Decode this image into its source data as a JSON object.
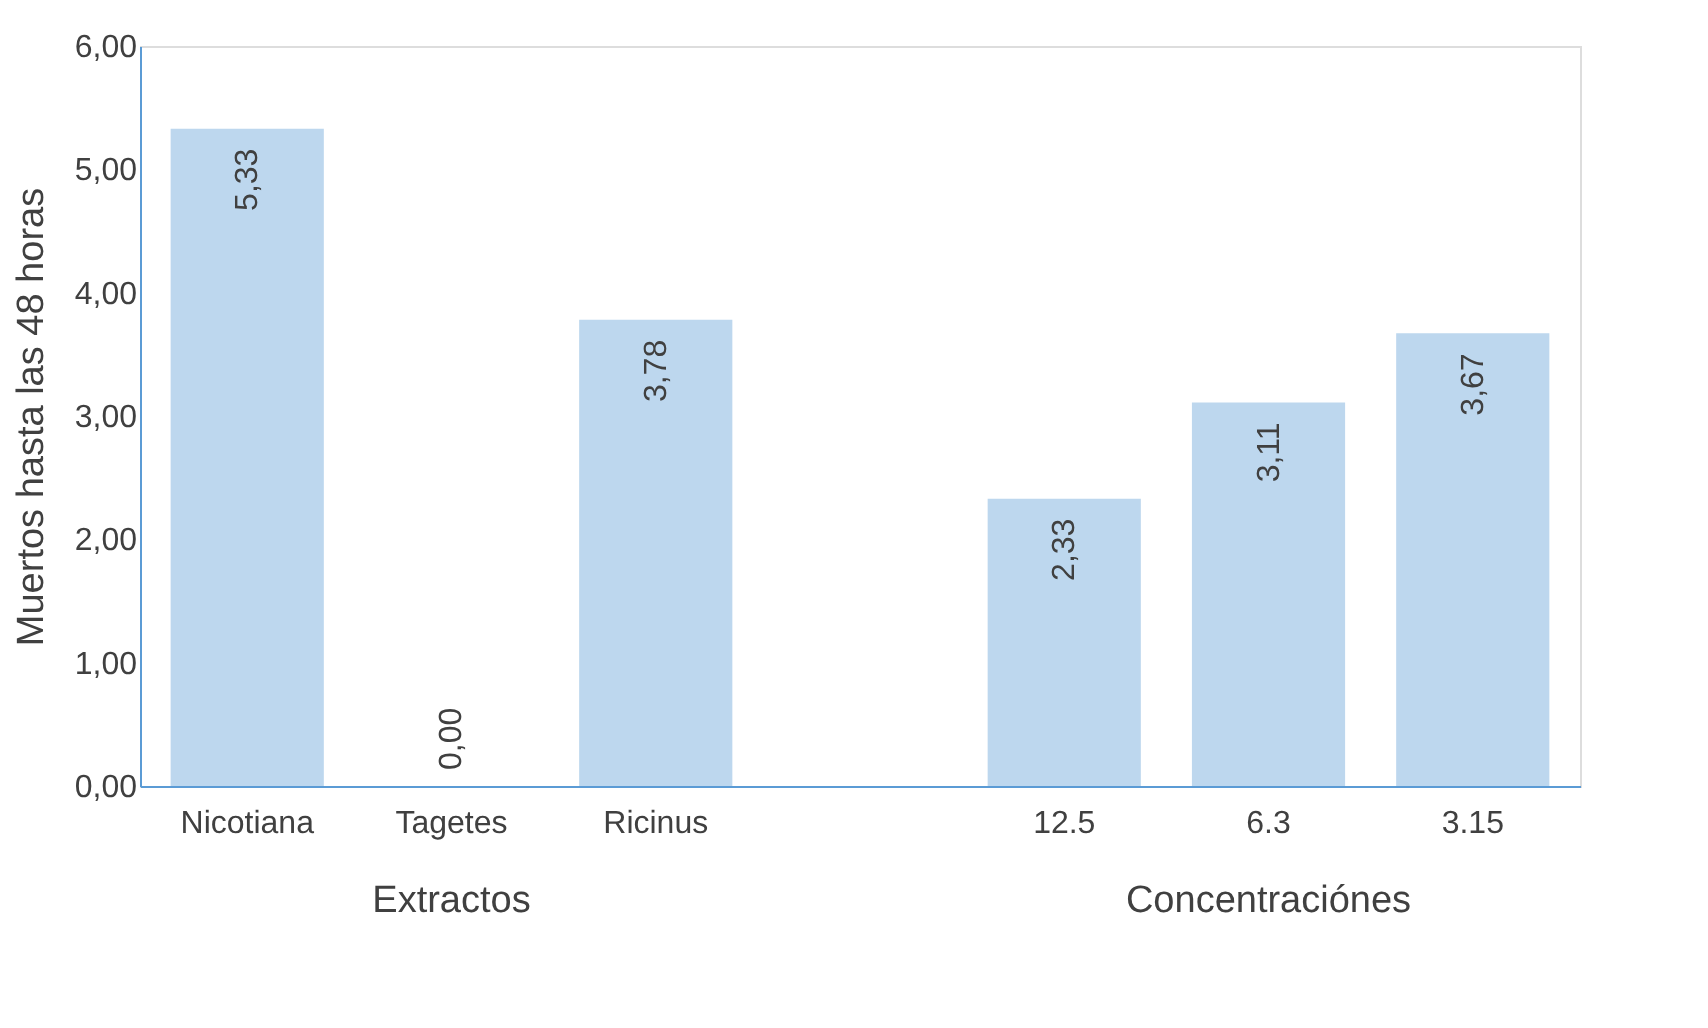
{
  "chart_data": {
    "type": "bar",
    "ylabel": "Muertos hasta las 48 horas",
    "categories": [
      "Nicotiana",
      "Tagetes",
      "Ricinus",
      null,
      "12.5",
      "6.3",
      "3.15"
    ],
    "values": [
      5.33,
      0.0,
      3.78,
      null,
      2.33,
      3.11,
      3.67
    ],
    "value_labels": [
      "5,33",
      "0,00",
      "3,78",
      null,
      "2,33",
      "3,11",
      "3,67"
    ],
    "color": "#bdd7ee",
    "ylim": [
      0,
      6
    ],
    "yticks": [
      {
        "value": 0,
        "label": "0,00"
      },
      {
        "value": 1,
        "label": "1,00"
      },
      {
        "value": 2,
        "label": "2,00"
      },
      {
        "value": 3,
        "label": "3,00"
      },
      {
        "value": 4,
        "label": "4,00"
      },
      {
        "value": 5,
        "label": "5,00"
      },
      {
        "value": 6,
        "label": "6,00"
      }
    ],
    "grid": false,
    "annotations": [
      "Extractos",
      "Concentraciónes"
    ]
  }
}
